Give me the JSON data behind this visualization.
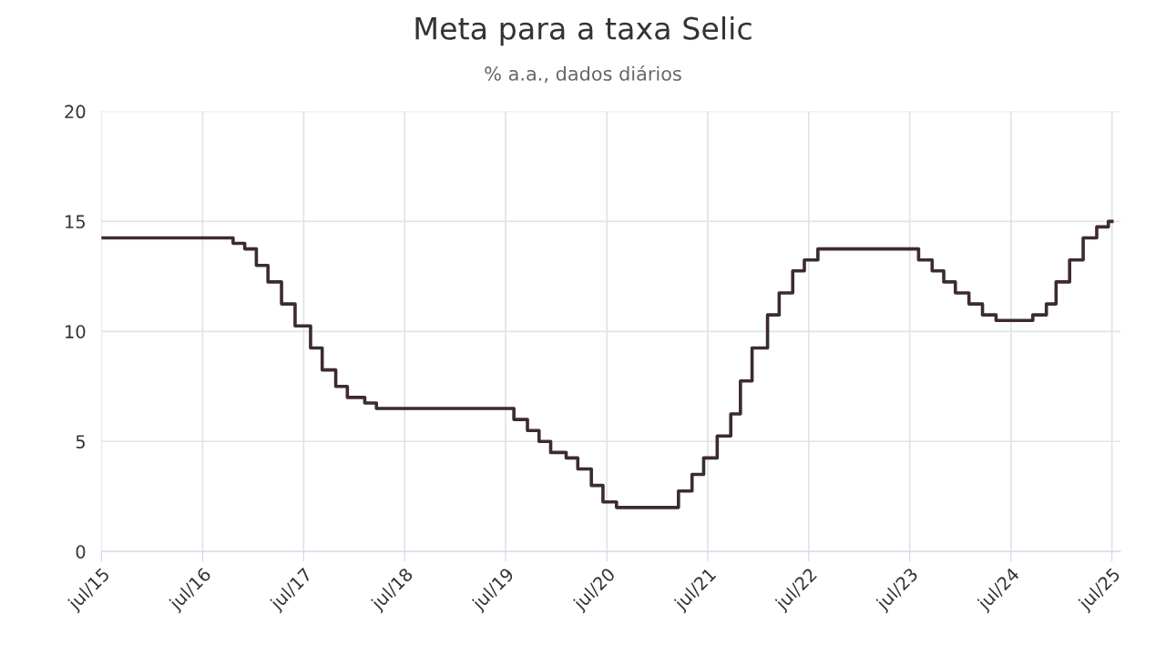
{
  "chart_data": {
    "type": "step",
    "title": "Meta para a taxa Selic",
    "subtitle": "% a.a., dados diários",
    "x": [
      "2015-07-01",
      "2016-10-19",
      "2016-11-30",
      "2017-01-11",
      "2017-02-22",
      "2017-04-12",
      "2017-05-31",
      "2017-07-26",
      "2017-09-06",
      "2017-10-25",
      "2017-12-06",
      "2018-02-07",
      "2018-03-21",
      "2019-07-31",
      "2019-09-18",
      "2019-10-30",
      "2019-12-11",
      "2020-02-05",
      "2020-03-18",
      "2020-05-06",
      "2020-06-17",
      "2020-08-05",
      "2021-03-17",
      "2021-05-05",
      "2021-06-16",
      "2021-08-04",
      "2021-09-22",
      "2021-10-27",
      "2021-12-08",
      "2022-02-02",
      "2022-03-16",
      "2022-05-04",
      "2022-06-15",
      "2022-08-03",
      "2023-08-02",
      "2023-09-20",
      "2023-11-01",
      "2023-12-13",
      "2024-01-31",
      "2024-03-20",
      "2024-05-08",
      "2024-09-18",
      "2024-11-06",
      "2024-12-11",
      "2025-01-29",
      "2025-03-19",
      "2025-05-07",
      "2025-06-18",
      "2025-07-01"
    ],
    "series": [
      {
        "color": "#3d2b2e",
        "values": [
          14.25,
          14.0,
          13.75,
          13.0,
          12.25,
          11.25,
          10.25,
          9.25,
          8.25,
          7.5,
          7.0,
          6.75,
          6.5,
          6.0,
          5.5,
          5.0,
          4.5,
          4.25,
          3.75,
          3.0,
          2.25,
          2.0,
          2.75,
          3.5,
          4.25,
          5.25,
          6.25,
          7.75,
          9.25,
          10.75,
          11.75,
          12.75,
          13.25,
          13.75,
          13.25,
          12.75,
          12.25,
          11.75,
          11.25,
          10.75,
          10.5,
          10.75,
          11.25,
          12.25,
          13.25,
          14.25,
          14.75,
          15.0,
          15.0
        ]
      }
    ],
    "xlim": [
      "2015-07-01",
      "2025-08-01"
    ],
    "xticks": [
      {
        "value": "2015-07-01",
        "label": "jul/15"
      },
      {
        "value": "2016-07-01",
        "label": "jul/16"
      },
      {
        "value": "2017-07-01",
        "label": "jul/17"
      },
      {
        "value": "2018-07-01",
        "label": "jul/18"
      },
      {
        "value": "2019-07-01",
        "label": "jul/19"
      },
      {
        "value": "2020-07-01",
        "label": "jul/20"
      },
      {
        "value": "2021-07-01",
        "label": "jul/21"
      },
      {
        "value": "2022-07-01",
        "label": "jul/22"
      },
      {
        "value": "2023-07-01",
        "label": "jul/23"
      },
      {
        "value": "2024-07-01",
        "label": "jul/24"
      },
      {
        "value": "2025-07-01",
        "label": "jul/25"
      }
    ],
    "ylim": [
      0,
      20
    ],
    "yticks": [
      0,
      5,
      10,
      15,
      20
    ],
    "grid": true,
    "line_style": "solid",
    "marker": "none",
    "legend": false
  }
}
